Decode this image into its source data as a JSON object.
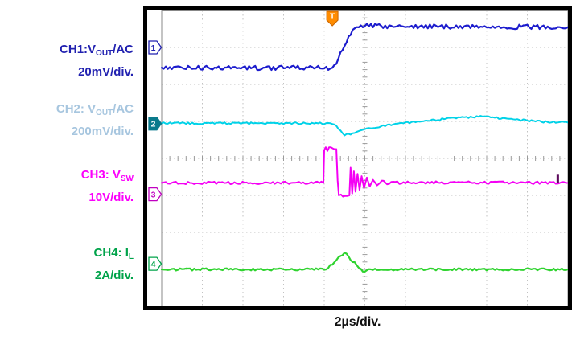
{
  "labels": {
    "ch1": {
      "l1a": "CH1:V",
      "l1sub": "OUT",
      "l1b": "/AC",
      "l2": "20mV/div.",
      "color": "#2121b0"
    },
    "ch2": {
      "l1a": "CH2: V",
      "l1sub": "OUT",
      "l1b": "/AC",
      "l2": "200mV/div.",
      "color": "#a7c6df"
    },
    "ch3": {
      "l1a": "CH3: V",
      "l1sub": "SW",
      "l1b": "",
      "l2": "10V/div.",
      "color": "#fb00fb"
    },
    "ch4": {
      "l1a": "CH4: I",
      "l1sub": "L",
      "l1b": "",
      "l2": "2A/div.",
      "color": "#00a34a"
    }
  },
  "timebase": {
    "label": "2µs/div."
  },
  "trigger": {
    "label": "T",
    "x_div": 4.2,
    "color": "#ff8c00"
  },
  "right_tick": {
    "x_div": 9.72,
    "y_div": 4.55,
    "color": "#5c0a5c"
  },
  "channel_markers": [
    {
      "num": "1",
      "y_div": 1.0,
      "color": "#2121b0",
      "filled": false
    },
    {
      "num": "2",
      "y_div": 3.06,
      "color": "#0a7a8c",
      "filled": true
    },
    {
      "num": "3",
      "y_div": 4.97,
      "color": "#c000c0",
      "filled": false
    },
    {
      "num": "4",
      "y_div": 6.85,
      "color": "#00a34a",
      "filled": false
    }
  ],
  "chart_data": {
    "type": "line",
    "title": "",
    "x_axis": {
      "per_div": "2µs",
      "divisions": 10
    },
    "y_axis": {
      "divisions": 8,
      "units": "divisions from top",
      "per_div": {
        "CH1": "20mV",
        "CH2": "200mV",
        "CH3": "10V",
        "CH4": "2A"
      }
    },
    "grid": true,
    "series": [
      {
        "name": "CH1 VOUT/AC (20mV/div)",
        "color": "#1c1ccd",
        "noise": 0.06,
        "width": 2.2,
        "points": [
          [
            0,
            1.55
          ],
          [
            4.2,
            1.55
          ],
          [
            4.35,
            1.3
          ],
          [
            4.6,
            0.7
          ],
          [
            4.8,
            0.45
          ],
          [
            5.0,
            0.42
          ],
          [
            10,
            0.45
          ]
        ]
      },
      {
        "name": "CH2 VOUT/AC (200mV/div)",
        "color": "#00d2e8",
        "noise": 0.025,
        "width": 2,
        "points": [
          [
            0,
            3.05
          ],
          [
            4.15,
            3.05
          ],
          [
            4.3,
            3.12
          ],
          [
            4.5,
            3.38
          ],
          [
            4.7,
            3.32
          ],
          [
            5.1,
            3.18
          ],
          [
            5.7,
            3.08
          ],
          [
            6.4,
            3.0
          ],
          [
            7.2,
            2.9
          ],
          [
            7.9,
            2.87
          ],
          [
            8.7,
            2.95
          ],
          [
            9.5,
            3.02
          ],
          [
            10,
            3.03
          ]
        ]
      },
      {
        "name": "CH3 VSW (10V/div)",
        "color": "#f400f4",
        "noise": 0.035,
        "width": 2,
        "points": [
          [
            0,
            4.66
          ],
          [
            3.98,
            4.66
          ],
          [
            4.0,
            3.78
          ],
          [
            4.04,
            3.7
          ],
          [
            4.08,
            3.8
          ],
          [
            4.12,
            3.7
          ],
          [
            4.3,
            3.75
          ],
          [
            4.33,
            4.6
          ],
          [
            4.36,
            5.0
          ],
          [
            4.62,
            5.0
          ],
          [
            4.65,
            4.25
          ],
          [
            4.69,
            4.95
          ],
          [
            4.73,
            4.35
          ],
          [
            4.77,
            4.9
          ],
          [
            4.82,
            4.42
          ],
          [
            4.87,
            4.85
          ],
          [
            4.92,
            4.48
          ],
          [
            4.98,
            4.8
          ],
          [
            5.05,
            4.52
          ],
          [
            5.12,
            4.76
          ],
          [
            5.2,
            4.58
          ],
          [
            5.3,
            4.73
          ],
          [
            5.42,
            4.6
          ],
          [
            5.55,
            4.7
          ],
          [
            5.7,
            4.63
          ],
          [
            5.9,
            4.68
          ],
          [
            6.1,
            4.65
          ],
          [
            10,
            4.66
          ]
        ]
      },
      {
        "name": "CH4 IL (2A/div)",
        "color": "#2fd32f",
        "noise": 0.03,
        "width": 2.2,
        "points": [
          [
            0,
            7.0
          ],
          [
            4.05,
            7.0
          ],
          [
            4.5,
            6.55
          ],
          [
            4.95,
            7.06
          ],
          [
            5.15,
            7.0
          ],
          [
            10,
            7.0
          ]
        ]
      }
    ]
  }
}
